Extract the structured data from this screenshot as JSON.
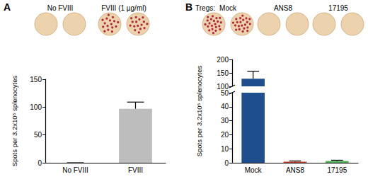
{
  "chart_data": [
    {
      "type": "bar",
      "title": "A",
      "wells": [
        "No FVIII",
        "FVIII (1 µg/ml)"
      ],
      "categories": [
        "No FVIII",
        "FVIII"
      ],
      "values": [
        0,
        97
      ],
      "errors": [
        0,
        12
      ],
      "colors": [
        "#bdbdbd",
        "#bdbdbd"
      ],
      "y_label": "Spots per 3.2x10⁵ splenocytes",
      "ylim": [
        0,
        150
      ],
      "yticks": [
        0,
        50,
        100,
        150
      ]
    },
    {
      "type": "bar",
      "title": "B",
      "wells_title": "Tregs:",
      "wells": [
        "Mock",
        "ANS8",
        "17195"
      ],
      "categories": [
        "Mock",
        "ANS8",
        "17195"
      ],
      "values": [
        128,
        0.8,
        1.2
      ],
      "errors": [
        28,
        0.5,
        0.6
      ],
      "colors": [
        "#1f4e8f",
        "#c0392b",
        "#4caf50"
      ],
      "y_label": "Spots per 3.2x10⁵ splenocytes",
      "ylim": [
        0,
        200
      ],
      "yticks": [
        0,
        10,
        20,
        30,
        40,
        50,
        100,
        150,
        200
      ],
      "y_break": [
        50,
        100
      ]
    }
  ]
}
